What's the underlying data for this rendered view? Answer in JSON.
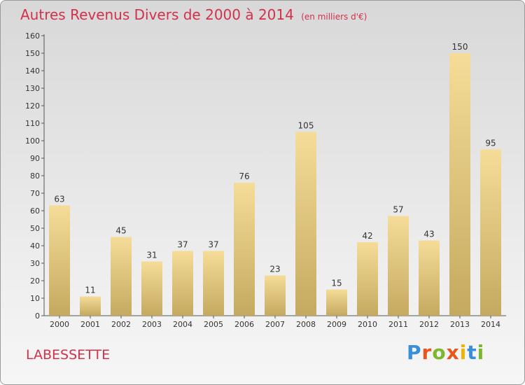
{
  "header": {
    "title": "Autres Revenus Divers de 2000 à 2014",
    "unit": "(en milliers d'€)"
  },
  "footer": {
    "location": "LABESSETTE",
    "logo": "Proxiti"
  },
  "colors": {
    "title": "#d4304b",
    "bar_light": "#f5dc98",
    "bar_dark": "#c4aa60",
    "logo": [
      "#3a8fd9",
      "#e8551f",
      "#7cb82f",
      "#e8551f",
      "#f0b400",
      "#3a8fd9",
      "#7cb82f"
    ]
  },
  "chart_data": {
    "type": "bar",
    "title": "Autres Revenus Divers de 2000 à 2014",
    "subtitle": "(en milliers d'€)",
    "categories": [
      "2000",
      "2001",
      "2002",
      "2003",
      "2004",
      "2005",
      "2006",
      "2007",
      "2008",
      "2009",
      "2010",
      "2011",
      "2012",
      "2013",
      "2014"
    ],
    "values": [
      63,
      11,
      45,
      31,
      37,
      37,
      76,
      23,
      105,
      15,
      42,
      57,
      43,
      150,
      95
    ],
    "ylim": [
      0,
      160
    ],
    "yticks": [
      0,
      10,
      20,
      30,
      40,
      50,
      60,
      70,
      80,
      90,
      100,
      110,
      120,
      130,
      140,
      150,
      160
    ],
    "grid": false,
    "xlabel": "",
    "ylabel": ""
  }
}
